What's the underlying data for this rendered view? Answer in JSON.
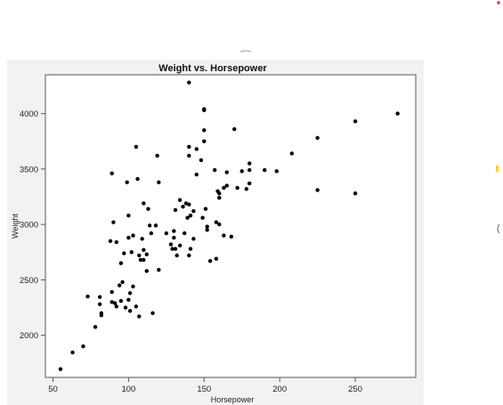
{
  "chart_data": {
    "type": "scatter",
    "title": "Weight vs. Horsepower",
    "xlabel": "Horsepower",
    "ylabel": "Weight",
    "xlim": [
      45,
      290
    ],
    "ylim": [
      1620,
      4350
    ],
    "xticks": [
      50,
      100,
      150,
      200,
      250
    ],
    "yticks": [
      2000,
      2500,
      3000,
      3500,
      4000
    ],
    "grid": false,
    "point_color": "#000000",
    "points": [
      [
        55,
        1695
      ],
      [
        63,
        1845
      ],
      [
        70,
        1900
      ],
      [
        73,
        2350
      ],
      [
        78,
        2075
      ],
      [
        81,
        2345
      ],
      [
        81,
        2280
      ],
      [
        82,
        2180
      ],
      [
        82,
        2200
      ],
      [
        88,
        2850
      ],
      [
        89,
        2300
      ],
      [
        89,
        2390
      ],
      [
        89,
        3460
      ],
      [
        90,
        3020
      ],
      [
        91,
        2290
      ],
      [
        92,
        2260
      ],
      [
        92,
        2840
      ],
      [
        95,
        2310
      ],
      [
        94,
        2450
      ],
      [
        95,
        2650
      ],
      [
        96,
        2480
      ],
      [
        97,
        2740
      ],
      [
        98,
        2250
      ],
      [
        100,
        3080
      ],
      [
        100,
        2880
      ],
      [
        100,
        2320
      ],
      [
        99,
        3380
      ],
      [
        101,
        2220
      ],
      [
        102,
        2750
      ],
      [
        101,
        2380
      ],
      [
        103,
        2900
      ],
      [
        103,
        2440
      ],
      [
        105,
        2260
      ],
      [
        105,
        3700
      ],
      [
        106,
        3410
      ],
      [
        107,
        2170
      ],
      [
        107,
        2720
      ],
      [
        108,
        2680
      ],
      [
        109,
        2870
      ],
      [
        110,
        3190
      ],
      [
        110,
        2770
      ],
      [
        110,
        2680
      ],
      [
        112,
        2730
      ],
      [
        112,
        2580
      ],
      [
        113,
        3140
      ],
      [
        114,
        2990
      ],
      [
        115,
        2920
      ],
      [
        116,
        2200
      ],
      [
        118,
        2990
      ],
      [
        119,
        3620
      ],
      [
        120,
        3380
      ],
      [
        120,
        2590
      ],
      [
        125,
        2920
      ],
      [
        128,
        2820
      ],
      [
        129,
        2780
      ],
      [
        130,
        2880
      ],
      [
        131,
        3130
      ],
      [
        130,
        2940
      ],
      [
        131,
        2780
      ],
      [
        132,
        2720
      ],
      [
        134,
        3220
      ],
      [
        134,
        2810
      ],
      [
        136,
        3160
      ],
      [
        137,
        2920
      ],
      [
        138,
        3190
      ],
      [
        139,
        3060
      ],
      [
        140,
        3700
      ],
      [
        140,
        3620
      ],
      [
        140,
        3180
      ],
      [
        141,
        3080
      ],
      [
        141,
        2780
      ],
      [
        140,
        2720
      ],
      [
        140,
        4280
      ],
      [
        143,
        2870
      ],
      [
        143,
        3120
      ],
      [
        145,
        3680
      ],
      [
        145,
        3450
      ],
      [
        148,
        3580
      ],
      [
        149,
        3060
      ],
      [
        150,
        3750
      ],
      [
        150,
        3850
      ],
      [
        150,
        4040
      ],
      [
        150,
        4030
      ],
      [
        151,
        3140
      ],
      [
        152,
        2950
      ],
      [
        152,
        2980
      ],
      [
        154,
        2670
      ],
      [
        157,
        3490
      ],
      [
        158,
        3020
      ],
      [
        158,
        2690
      ],
      [
        159,
        3300
      ],
      [
        160,
        3240
      ],
      [
        160,
        3280
      ],
      [
        160,
        3000
      ],
      [
        163,
        2900
      ],
      [
        163,
        3330
      ],
      [
        165,
        3350
      ],
      [
        165,
        3470
      ],
      [
        168,
        2890
      ],
      [
        170,
        3860
      ],
      [
        172,
        3330
      ],
      [
        175,
        3480
      ],
      [
        178,
        3320
      ],
      [
        180,
        3550
      ],
      [
        180,
        3490
      ],
      [
        180,
        3370
      ],
      [
        190,
        3490
      ],
      [
        198,
        3480
      ],
      [
        208,
        3640
      ],
      [
        225,
        3780
      ],
      [
        225,
        3310
      ],
      [
        250,
        3930
      ],
      [
        250,
        3280
      ],
      [
        278,
        4000
      ]
    ]
  }
}
